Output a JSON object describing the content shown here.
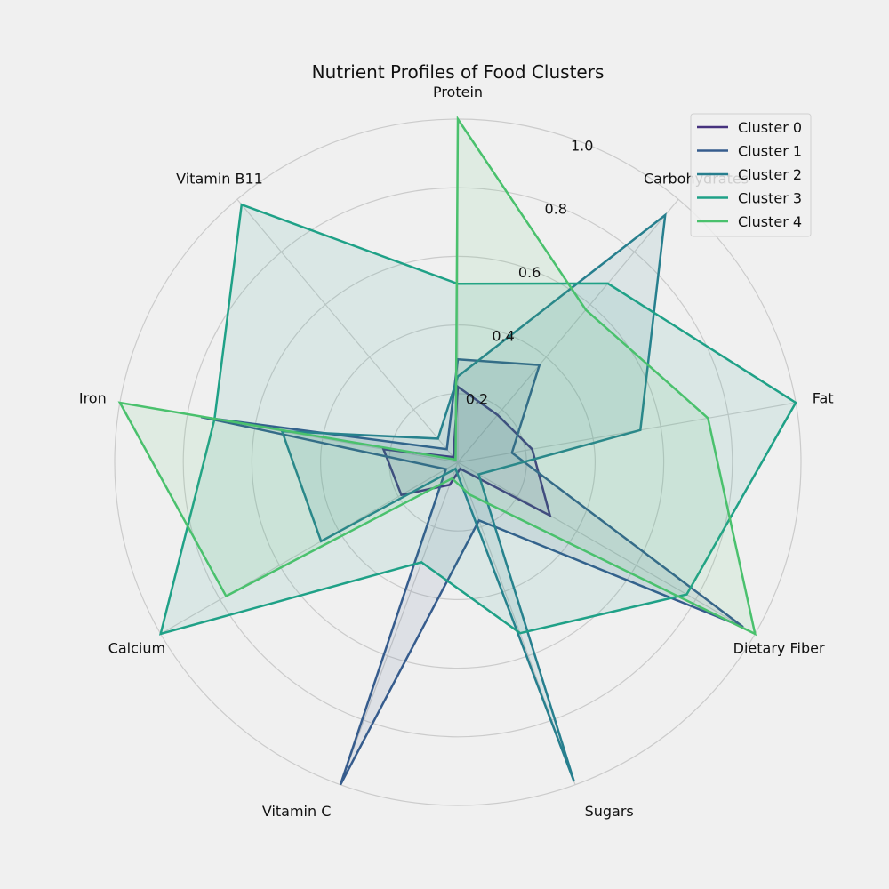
{
  "chart_data": {
    "type": "radar",
    "title": "Nutrient Profiles of Food Clusters",
    "axes": [
      "Protein",
      "Carbohydrates",
      "Fat",
      "Dietary Fiber",
      "Sugars",
      "Vitamin C",
      "Calcium",
      "Iron",
      "Vitamin B11"
    ],
    "radial_ticks": [
      "0.2",
      "0.4",
      "0.6",
      "0.8",
      "1.0"
    ],
    "rlim": [
      0,
      1.0
    ],
    "grid": true,
    "legend_position": "top-right",
    "series": [
      {
        "name": "Cluster 0",
        "color": "#46327e",
        "values": [
          0.22,
          0.18,
          0.22,
          0.31,
          0.02,
          0.07,
          0.19,
          0.22,
          0.02
        ]
      },
      {
        "name": "Cluster 1",
        "color": "#365c8d",
        "values": [
          0.3,
          0.37,
          0.16,
          0.96,
          0.18,
          1.0,
          0.04,
          0.76,
          0.05
        ]
      },
      {
        "name": "Cluster 2",
        "color": "#277f8e",
        "values": [
          0.25,
          0.94,
          0.54,
          0.07,
          0.99,
          0.02,
          0.46,
          0.52,
          0.09
        ]
      },
      {
        "name": "Cluster 3",
        "color": "#1fa187",
        "values": [
          0.52,
          0.68,
          1.0,
          0.77,
          0.53,
          0.31,
          1.0,
          0.72,
          0.98
        ]
      },
      {
        "name": "Cluster 4",
        "color": "#4ac16d",
        "values": [
          1.0,
          0.58,
          0.74,
          1.0,
          0.1,
          0.05,
          0.78,
          1.0,
          0.01
        ]
      }
    ]
  }
}
